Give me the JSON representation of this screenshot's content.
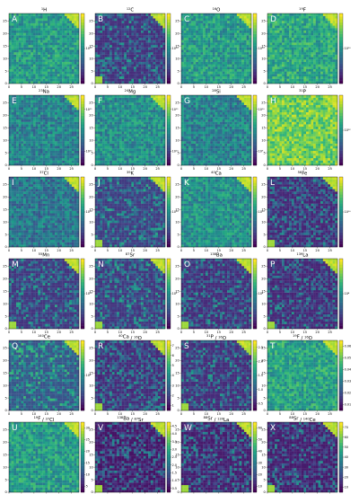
{
  "figure": {
    "x_ticks": [
      "0",
      "5",
      "10",
      "15",
      "20",
      "25"
    ],
    "y_ticks": [
      "0",
      "5",
      "10",
      "15",
      "20",
      "25"
    ]
  },
  "chart_data": [
    {
      "type": "heatmap",
      "panel": "A",
      "title": {
        "mass": "1",
        "element": "H"
      },
      "grid": [
        29,
        29
      ],
      "xlim": [
        0,
        28
      ],
      "ylim": [
        0,
        28
      ],
      "colorbar": {
        "scale": "log",
        "labels": [
          "10¹¹"
        ]
      },
      "colormap": "viridis",
      "mean_level": 0.55
    },
    {
      "type": "heatmap",
      "panel": "B",
      "title": {
        "mass": "12",
        "element": "C"
      },
      "grid": [
        29,
        29
      ],
      "xlim": [
        0,
        28
      ],
      "ylim": [
        0,
        28
      ],
      "colorbar": {
        "scale": "log",
        "labels": [
          "10¹⁰"
        ]
      },
      "colormap": "viridis",
      "mean_level": 0.18
    },
    {
      "type": "heatmap",
      "panel": "C",
      "title": {
        "mass": "16",
        "element": "O"
      },
      "grid": [
        29,
        29
      ],
      "xlim": [
        0,
        28
      ],
      "ylim": [
        0,
        28
      ],
      "colorbar": {
        "scale": "log",
        "labels": [
          "10¹⁰"
        ]
      },
      "colormap": "viridis",
      "mean_level": 0.55
    },
    {
      "type": "heatmap",
      "panel": "D",
      "title": {
        "mass": "19",
        "element": "F"
      },
      "grid": [
        29,
        29
      ],
      "xlim": [
        0,
        28
      ],
      "ylim": [
        0,
        28
      ],
      "colorbar": {
        "scale": "log",
        "labels": [
          "10¹⁰"
        ]
      },
      "colormap": "viridis",
      "mean_level": 0.6
    },
    {
      "type": "heatmap",
      "panel": "E",
      "title": {
        "mass": "23",
        "element": "Na"
      },
      "grid": [
        29,
        29
      ],
      "xlim": [
        0,
        28
      ],
      "ylim": [
        0,
        28
      ],
      "colorbar": {
        "scale": "log",
        "labels": [
          "10¹¹",
          "10¹⁰"
        ]
      },
      "colormap": "viridis",
      "mean_level": 0.45
    },
    {
      "type": "heatmap",
      "panel": "F",
      "title": {
        "mass": "24",
        "element": "Mg"
      },
      "grid": [
        29,
        29
      ],
      "xlim": [
        0,
        28
      ],
      "ylim": [
        0,
        28
      ],
      "colorbar": {
        "scale": "log",
        "labels": [
          "10¹¹",
          "10¹⁰"
        ]
      },
      "colormap": "viridis",
      "mean_level": 0.5
    },
    {
      "type": "heatmap",
      "panel": "G",
      "title": {
        "mass": "28",
        "element": "Si"
      },
      "grid": [
        29,
        29
      ],
      "xlim": [
        0,
        28
      ],
      "ylim": [
        0,
        28
      ],
      "colorbar": {
        "scale": "log",
        "labels": [
          "10¹⁰",
          "10⁹"
        ]
      },
      "colormap": "viridis",
      "mean_level": 0.45
    },
    {
      "type": "heatmap",
      "panel": "H",
      "title": {
        "mass": "31",
        "element": "P"
      },
      "grid": [
        29,
        29
      ],
      "xlim": [
        0,
        28
      ],
      "ylim": [
        0,
        28
      ],
      "colorbar": {
        "scale": "log",
        "labels": [
          "10¹²"
        ]
      },
      "colormap": "viridis",
      "mean_level": 0.78
    },
    {
      "type": "heatmap",
      "panel": "I",
      "title": {
        "mass": "37",
        "element": "Cl"
      },
      "grid": [
        29,
        29
      ],
      "xlim": [
        0,
        28
      ],
      "ylim": [
        0,
        28
      ],
      "colorbar": {
        "scale": "log",
        "labels": [
          "10¹⁰"
        ]
      },
      "colormap": "viridis",
      "mean_level": 0.4
    },
    {
      "type": "heatmap",
      "panel": "J",
      "title": {
        "mass": "39",
        "element": "K"
      },
      "grid": [
        29,
        29
      ],
      "xlim": [
        0,
        28
      ],
      "ylim": [
        0,
        28
      ],
      "colorbar": {
        "scale": "log",
        "labels": [
          "10¹⁰"
        ]
      },
      "colormap": "viridis",
      "mean_level": 0.22
    },
    {
      "type": "heatmap",
      "panel": "K",
      "title": {
        "mass": "40",
        "element": "Ca"
      },
      "grid": [
        29,
        29
      ],
      "xlim": [
        0,
        28
      ],
      "ylim": [
        0,
        28
      ],
      "colorbar": {
        "scale": "log",
        "labels": [
          "10¹⁰"
        ]
      },
      "colormap": "viridis",
      "mean_level": 0.5
    },
    {
      "type": "heatmap",
      "panel": "L",
      "title": {
        "mass": "56",
        "element": "Fe"
      },
      "grid": [
        29,
        29
      ],
      "xlim": [
        0,
        28
      ],
      "ylim": [
        0,
        28
      ],
      "colorbar": {
        "scale": "log",
        "labels": [
          "10¹⁰"
        ]
      },
      "colormap": "viridis",
      "mean_level": 0.15
    },
    {
      "type": "heatmap",
      "panel": "M",
      "title": {
        "mass": "55",
        "element": "Mn"
      },
      "grid": [
        29,
        29
      ],
      "xlim": [
        0,
        28
      ],
      "ylim": [
        0,
        28
      ],
      "colorbar": {
        "scale": "log",
        "labels": [
          "10¹⁰"
        ]
      },
      "colormap": "viridis",
      "mean_level": 0.2
    },
    {
      "type": "heatmap",
      "panel": "N",
      "title": {
        "mass": "87",
        "element": "Sr"
      },
      "grid": [
        29,
        29
      ],
      "xlim": [
        0,
        28
      ],
      "ylim": [
        0,
        28
      ],
      "colorbar": {
        "scale": "log",
        "labels": [
          "10⁹"
        ]
      },
      "colormap": "viridis",
      "mean_level": 0.2
    },
    {
      "type": "heatmap",
      "panel": "O",
      "title": {
        "mass": "138",
        "element": "Ba"
      },
      "grid": [
        29,
        29
      ],
      "xlim": [
        0,
        28
      ],
      "ylim": [
        0,
        28
      ],
      "colorbar": {
        "scale": "log",
        "labels": [
          "10⁸"
        ]
      },
      "colormap": "viridis",
      "mean_level": 0.17
    },
    {
      "type": "heatmap",
      "panel": "P",
      "title": {
        "mass": "139",
        "element": "La"
      },
      "grid": [
        29,
        29
      ],
      "xlim": [
        0,
        28
      ],
      "ylim": [
        0,
        28
      ],
      "colorbar": {
        "scale": "log",
        "labels": [
          "10⁸"
        ]
      },
      "colormap": "viridis",
      "mean_level": 0.15
    },
    {
      "type": "heatmap",
      "panel": "Q",
      "title": {
        "mass": "140",
        "element": "Ce"
      },
      "grid": [
        29,
        29
      ],
      "xlim": [
        0,
        28
      ],
      "ylim": [
        0,
        28
      ],
      "colorbar": {
        "scale": "log",
        "labels": [
          "10⁸"
        ]
      },
      "colormap": "viridis",
      "mean_level": 0.3
    },
    {
      "type": "heatmap",
      "panel": "R",
      "title": {
        "mass": "40",
        "element": "Ca",
        "den_mass": "16",
        "den_element": "O"
      },
      "grid": [
        29,
        29
      ],
      "xlim": [
        0,
        28
      ],
      "ylim": [
        0,
        28
      ],
      "colorbar": {
        "scale": "linear",
        "labels": [
          "1",
          "2",
          "3",
          "4",
          "5",
          "6",
          "7"
        ]
      },
      "colormap": "viridis",
      "mean_level": 0.16
    },
    {
      "type": "heatmap",
      "panel": "S",
      "title": {
        "mass": "31",
        "element": "P",
        "den_mass": "16",
        "den_element": "O"
      },
      "grid": [
        29,
        29
      ],
      "xlim": [
        0,
        28
      ],
      "ylim": [
        0,
        28
      ],
      "colorbar": {
        "scale": "linear",
        "labels": [
          "0.5",
          "1.0",
          "1.5",
          "2.0",
          "2.5"
        ]
      },
      "colormap": "viridis",
      "mean_level": 0.17
    },
    {
      "type": "heatmap",
      "panel": "T",
      "title": {
        "mass": "19",
        "element": "F",
        "den_mass": "16",
        "den_element": "O"
      },
      "grid": [
        29,
        29
      ],
      "xlim": [
        0,
        28
      ],
      "ylim": [
        0,
        28
      ],
      "colorbar": {
        "scale": "linear",
        "labels": [
          "0.01",
          "0.02",
          "0.03",
          "0.04",
          "0.05",
          "0.06"
        ]
      },
      "colormap": "viridis",
      "mean_level": 0.58
    },
    {
      "type": "heatmap",
      "panel": "U",
      "title": {
        "mass": "19",
        "element": "F",
        "den_mass": "37",
        "den_element": "Cl"
      },
      "grid": [
        29,
        29
      ],
      "xlim": [
        0,
        28
      ],
      "ylim": [
        0,
        28
      ],
      "colorbar": {
        "scale": "linear",
        "labels": [
          "5",
          "10",
          "15",
          "20",
          "25",
          "30"
        ]
      },
      "colormap": "viridis",
      "mean_level": 0.55
    },
    {
      "type": "heatmap",
      "panel": "V",
      "title": {
        "mass": "138",
        "element": "Ba",
        "den_mass": "87",
        "den_element": "Sr"
      },
      "grid": [
        29,
        29
      ],
      "xlim": [
        0,
        28
      ],
      "ylim": [
        0,
        28
      ],
      "colorbar": {
        "scale": "linear",
        "labels": [
          "0.5",
          "1.0",
          "1.5",
          "2.0",
          "2.5",
          "3.0",
          "3.5",
          "4.0",
          "4.5"
        ]
      },
      "colormap": "viridis",
      "mean_level": 0.1
    },
    {
      "type": "heatmap",
      "panel": "W",
      "title": {
        "mass": "88",
        "element": "Sr",
        "den_mass": "139",
        "den_element": "La"
      },
      "grid": [
        29,
        29
      ],
      "xlim": [
        0,
        28
      ],
      "ylim": [
        0,
        28
      ],
      "colorbar": {
        "scale": "linear",
        "labels": [
          "10",
          "20",
          "30",
          "40",
          "50",
          "60"
        ]
      },
      "colormap": "viridis",
      "mean_level": 0.12
    },
    {
      "type": "heatmap",
      "panel": "X",
      "title": {
        "mass": "88",
        "element": "Sr",
        "den_mass": "140",
        "den_element": "Ce"
      },
      "grid": [
        29,
        29
      ],
      "xlim": [
        0,
        28
      ],
      "ylim": [
        0,
        28
      ],
      "colorbar": {
        "scale": "linear",
        "labels": [
          "10",
          "20",
          "30",
          "40",
          "50",
          "60",
          "70"
        ]
      },
      "colormap": "viridis",
      "mean_level": 0.12
    }
  ]
}
